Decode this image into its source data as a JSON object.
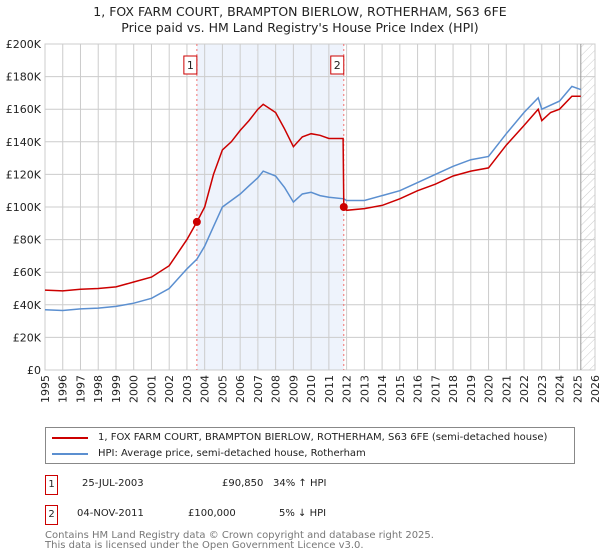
{
  "title": "1, FOX FARM COURT, BRAMPTON BIERLOW, ROTHERHAM, S63 6FE",
  "subtitle": "Price paid vs. HM Land Registry's House Price Index (HPI)",
  "chart_data": {
    "type": "line",
    "xlim": [
      1995,
      2026
    ],
    "ylim": [
      0,
      200000
    ],
    "x_ticks": [
      "1995",
      "1996",
      "1997",
      "1998",
      "1999",
      "2000",
      "2001",
      "2002",
      "2003",
      "2004",
      "2005",
      "2006",
      "2007",
      "2008",
      "2009",
      "2010",
      "2011",
      "2012",
      "2013",
      "2014",
      "2015",
      "2016",
      "2017",
      "2018",
      "2019",
      "2020",
      "2021",
      "2022",
      "2023",
      "2024",
      "2025",
      "2026"
    ],
    "y_ticks": [
      {
        "v": 0,
        "label": "£0"
      },
      {
        "v": 20000,
        "label": "£20K"
      },
      {
        "v": 40000,
        "label": "£40K"
      },
      {
        "v": 60000,
        "label": "£60K"
      },
      {
        "v": 80000,
        "label": "£80K"
      },
      {
        "v": 100000,
        "label": "£100K"
      },
      {
        "v": 120000,
        "label": "£120K"
      },
      {
        "v": 140000,
        "label": "£140K"
      },
      {
        "v": 160000,
        "label": "£160K"
      },
      {
        "v": 180000,
        "label": "£180K"
      },
      {
        "v": 200000,
        "label": "£200K"
      }
    ],
    "grid": true,
    "shaded_range": [
      2003.56,
      2011.84
    ],
    "forecast_hatch_from": 2025.2,
    "series": [
      {
        "name": "1, FOX FARM COURT, BRAMPTON BIERLOW, ROTHERHAM, S63 6FE (semi-detached house)",
        "color": "#cc0000",
        "x": [
          1995,
          1996,
          1997,
          1998,
          1999,
          2000,
          2001,
          2002,
          2002.5,
          2003,
          2003.56,
          2004,
          2004.5,
          2005,
          2005.5,
          2006,
          2006.5,
          2007,
          2007.3,
          2008,
          2008.5,
          2009,
          2009.5,
          2010,
          2010.5,
          2011,
          2011.8,
          2011.84,
          2012,
          2013,
          2014,
          2015,
          2016,
          2017,
          2018,
          2019,
          2020,
          2021,
          2022,
          2022.8,
          2023,
          2023.5,
          2024,
          2024.7,
          2025.2
        ],
        "y": [
          49000,
          48500,
          49500,
          50000,
          51000,
          54000,
          57000,
          64000,
          72000,
          80000,
          90850,
          100000,
          120000,
          135000,
          140000,
          147000,
          153000,
          160000,
          163000,
          158000,
          148000,
          137000,
          143000,
          145000,
          144000,
          142000,
          142000,
          100000,
          98000,
          99000,
          101000,
          105000,
          110000,
          114000,
          119000,
          122000,
          124000,
          138000,
          150000,
          160000,
          153000,
          158000,
          160000,
          168000,
          168000
        ]
      },
      {
        "name": "HPI: Average price, semi-detached house, Rotherham",
        "color": "#5b8fd0",
        "x": [
          1995,
          1996,
          1997,
          1998,
          1999,
          2000,
          2001,
          2002,
          2003,
          2003.56,
          2004,
          2004.5,
          2005,
          2005.5,
          2006,
          2006.5,
          2007,
          2007.3,
          2008,
          2008.5,
          2009,
          2009.5,
          2010,
          2010.5,
          2011,
          2011.84,
          2012,
          2013,
          2014,
          2015,
          2016,
          2017,
          2018,
          2019,
          2020,
          2021,
          2022,
          2022.8,
          2023,
          2024,
          2024.7,
          2025.2
        ],
        "y": [
          37000,
          36500,
          37500,
          38000,
          39000,
          41000,
          44000,
          50000,
          62000,
          68000,
          76000,
          88000,
          100000,
          104000,
          108000,
          113000,
          118000,
          122000,
          119000,
          112000,
          103000,
          108000,
          109000,
          107000,
          106000,
          105000,
          104000,
          104000,
          107000,
          110000,
          115000,
          120000,
          125000,
          129000,
          131000,
          145000,
          158000,
          167000,
          160000,
          165000,
          174000,
          172000
        ]
      }
    ],
    "annotations": [
      {
        "label": "1",
        "x": 2003.56,
        "y": 90850
      },
      {
        "label": "2",
        "x": 2011.84,
        "y": 100000
      }
    ]
  },
  "transactions": [
    {
      "num": "1",
      "date": "25-JUL-2003",
      "price": "£90,850",
      "hpi": "34% ↑ HPI"
    },
    {
      "num": "2",
      "date": "04-NOV-2011",
      "price": "£100,000",
      "hpi": "5% ↓ HPI"
    }
  ],
  "footer": [
    "Contains HM Land Registry data © Crown copyright and database right 2025.",
    "This data is licensed under the Open Government Licence v3.0."
  ]
}
